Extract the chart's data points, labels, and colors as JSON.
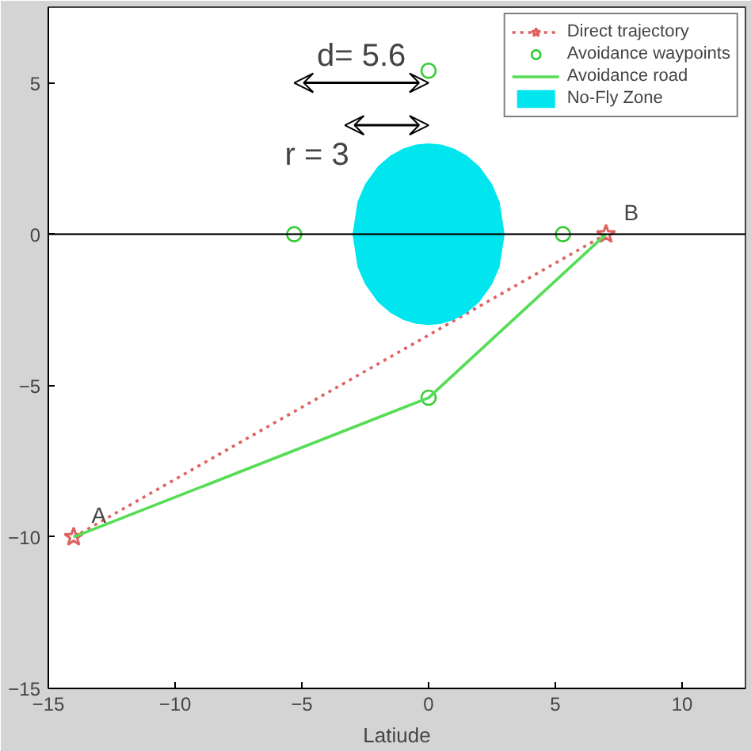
{
  "chart_data": {
    "type": "line",
    "xlabel": "Latiude",
    "xlim": [
      -15,
      12.5
    ],
    "ylim": [
      -15,
      7.5
    ],
    "xticks": [
      -15,
      -10,
      -5,
      0,
      5,
      10
    ],
    "yticks": [
      -15,
      -10,
      -5,
      0,
      5
    ],
    "grid": false,
    "legend": "top right",
    "ref_lines": [
      {
        "axis": "y",
        "value": 0,
        "color": "#000000"
      }
    ],
    "annotations": [
      "d= 5.6",
      "r = 3",
      {
        "text": "A",
        "x": -13.3,
        "y": -10
      },
      {
        "text": "B",
        "x": 7.7,
        "y": 0
      }
    ],
    "series": [
      {
        "name": "Direct trajectory",
        "type": "line",
        "x": [
          -14,
          7
        ],
        "values": [
          -10,
          0
        ],
        "color": "#e06060",
        "line_style": "dotted",
        "marker": "star"
      },
      {
        "name": "Avoidance waypoints",
        "type": "scatter",
        "x": [
          -5.3,
          0,
          5.3,
          0
        ],
        "values": [
          0,
          5.4,
          0,
          -5.4
        ],
        "color": "#33cc33",
        "marker": "circle"
      },
      {
        "name": "Avoidance road",
        "x": [
          -14,
          0,
          7
        ],
        "values": [
          -10,
          -5.4,
          0
        ],
        "color": "#55dd55",
        "line_style": "solid",
        "marker": "none"
      },
      {
        "name": "No-Fly Zone",
        "type": "area",
        "x": [
          -3,
          -2.8,
          -2.5,
          -2,
          -1.5,
          -1,
          -0.5,
          0,
          0.5,
          1,
          1.5,
          2,
          2.5,
          2.8,
          3
        ],
        "values": [
          0,
          1.08,
          1.66,
          2.24,
          2.6,
          2.83,
          2.96,
          3,
          2.96,
          2.83,
          2.6,
          2.24,
          1.66,
          1.08,
          0
        ],
        "color": "#00e5ee"
      },
      {
        "type": "area",
        "x": [
          -3,
          -2.8,
          -2.5,
          -2,
          -1.5,
          -1,
          -0.5,
          0,
          0.5,
          1,
          1.5,
          2,
          2.5,
          2.8,
          3
        ],
        "values": [
          0,
          -1.08,
          -1.66,
          -2.24,
          -2.6,
          -2.83,
          -2.96,
          -3,
          -2.96,
          -2.83,
          -2.6,
          -2.24,
          -1.66,
          -1.08,
          0
        ],
        "color": "#00e5ee"
      }
    ]
  }
}
